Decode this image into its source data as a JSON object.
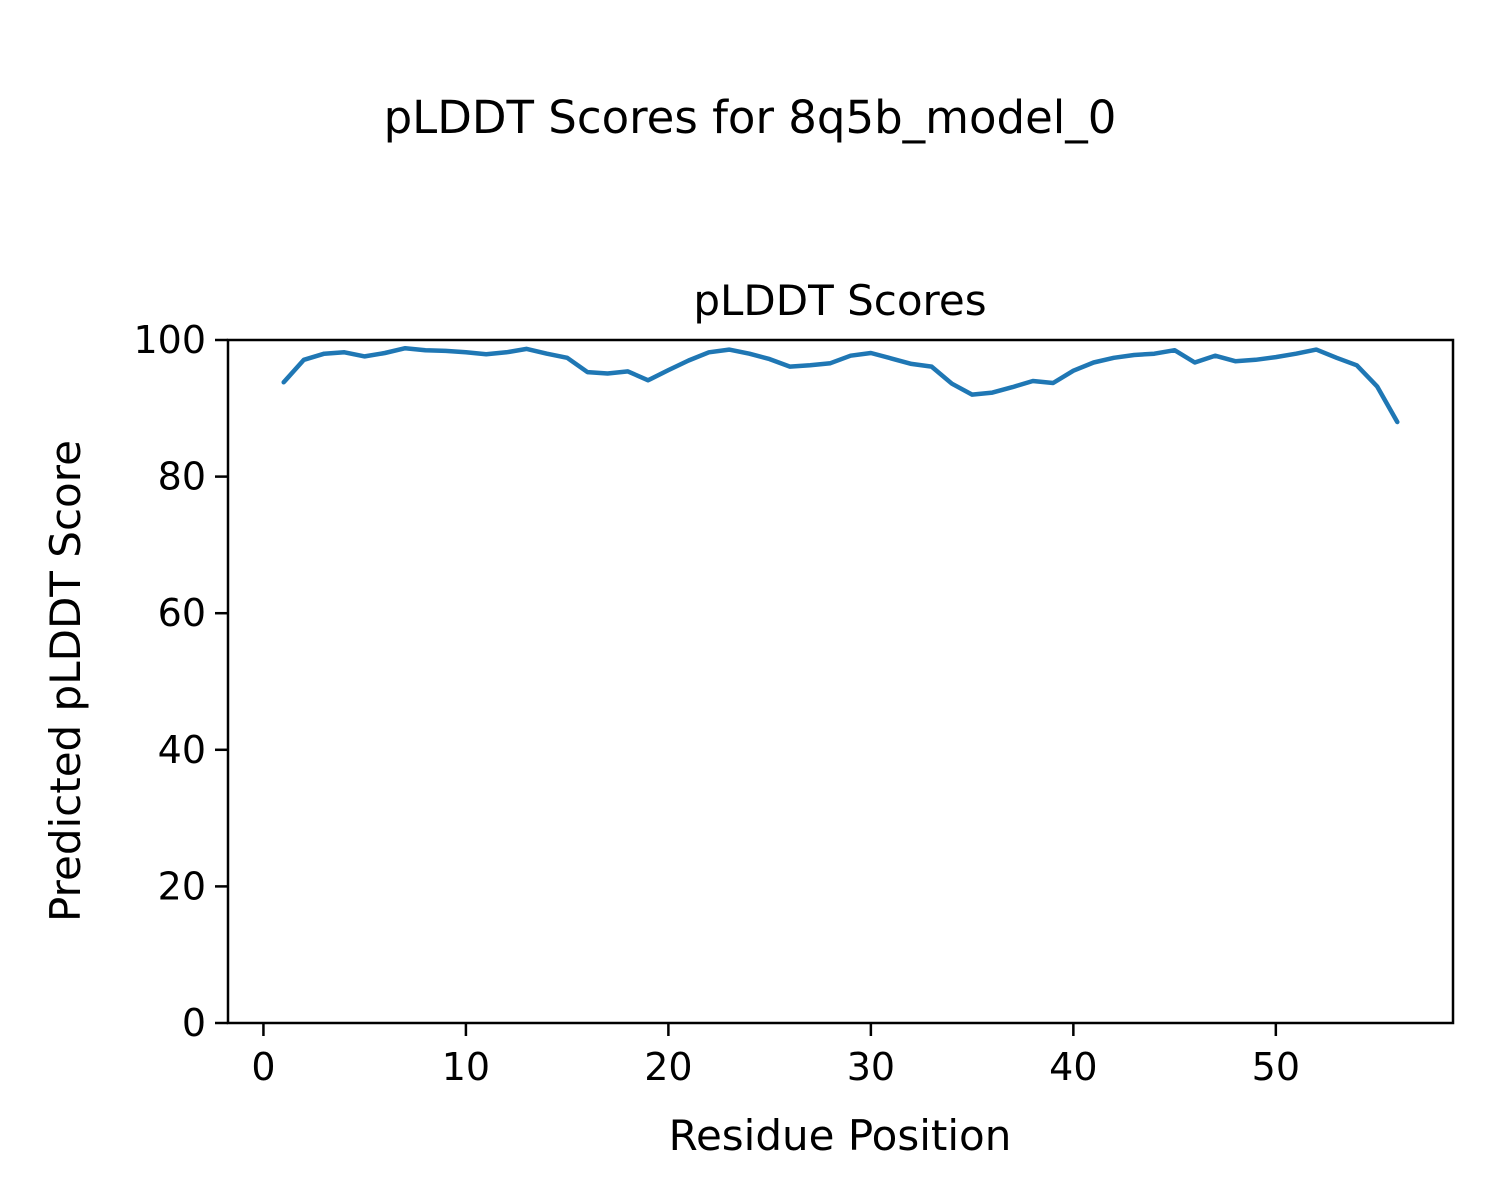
{
  "figure": {
    "background": "#ffffff",
    "spine_color": "#000000",
    "text_color": "#000000"
  },
  "chart_data": {
    "type": "line",
    "suptitle": "pLDDT Scores for 8q5b_model_0",
    "title": "pLDDT Scores",
    "xlabel": "Residue Position",
    "ylabel": "Predicted pLDDT Score",
    "series_name": "pLDDT",
    "line_color": "#1f77b4",
    "grid": false,
    "legend_position": "none",
    "xlim": [
      -1.75,
      58.75
    ],
    "ylim": [
      0,
      100
    ],
    "x_ticks": [
      0,
      10,
      20,
      30,
      40,
      50
    ],
    "y_ticks": [
      0,
      20,
      40,
      60,
      80,
      100
    ],
    "x": [
      1,
      2,
      3,
      4,
      5,
      6,
      7,
      8,
      9,
      10,
      11,
      12,
      13,
      14,
      15,
      16,
      17,
      18,
      19,
      20,
      21,
      22,
      23,
      24,
      25,
      26,
      27,
      28,
      29,
      30,
      31,
      32,
      33,
      34,
      35,
      36,
      37,
      38,
      39,
      40,
      41,
      42,
      43,
      44,
      45,
      46,
      47,
      48,
      49,
      50,
      51,
      52,
      53,
      54,
      55,
      56
    ],
    "y": [
      93.8,
      97.1,
      98.0,
      98.2,
      97.6,
      98.1,
      98.8,
      98.5,
      98.4,
      98.2,
      97.9,
      98.2,
      98.7,
      98.0,
      97.4,
      95.3,
      95.1,
      95.4,
      94.1,
      95.6,
      97.0,
      98.2,
      98.6,
      98.0,
      97.2,
      96.1,
      96.3,
      96.6,
      97.7,
      98.1,
      97.3,
      96.5,
      96.1,
      93.6,
      92.0,
      92.3,
      93.1,
      94.0,
      93.7,
      95.5,
      96.7,
      97.4,
      97.8,
      98.0,
      98.5,
      96.7,
      97.7,
      96.9,
      97.1,
      97.5,
      98.0,
      98.6,
      97.4,
      96.3,
      93.2,
      88.0
    ]
  }
}
